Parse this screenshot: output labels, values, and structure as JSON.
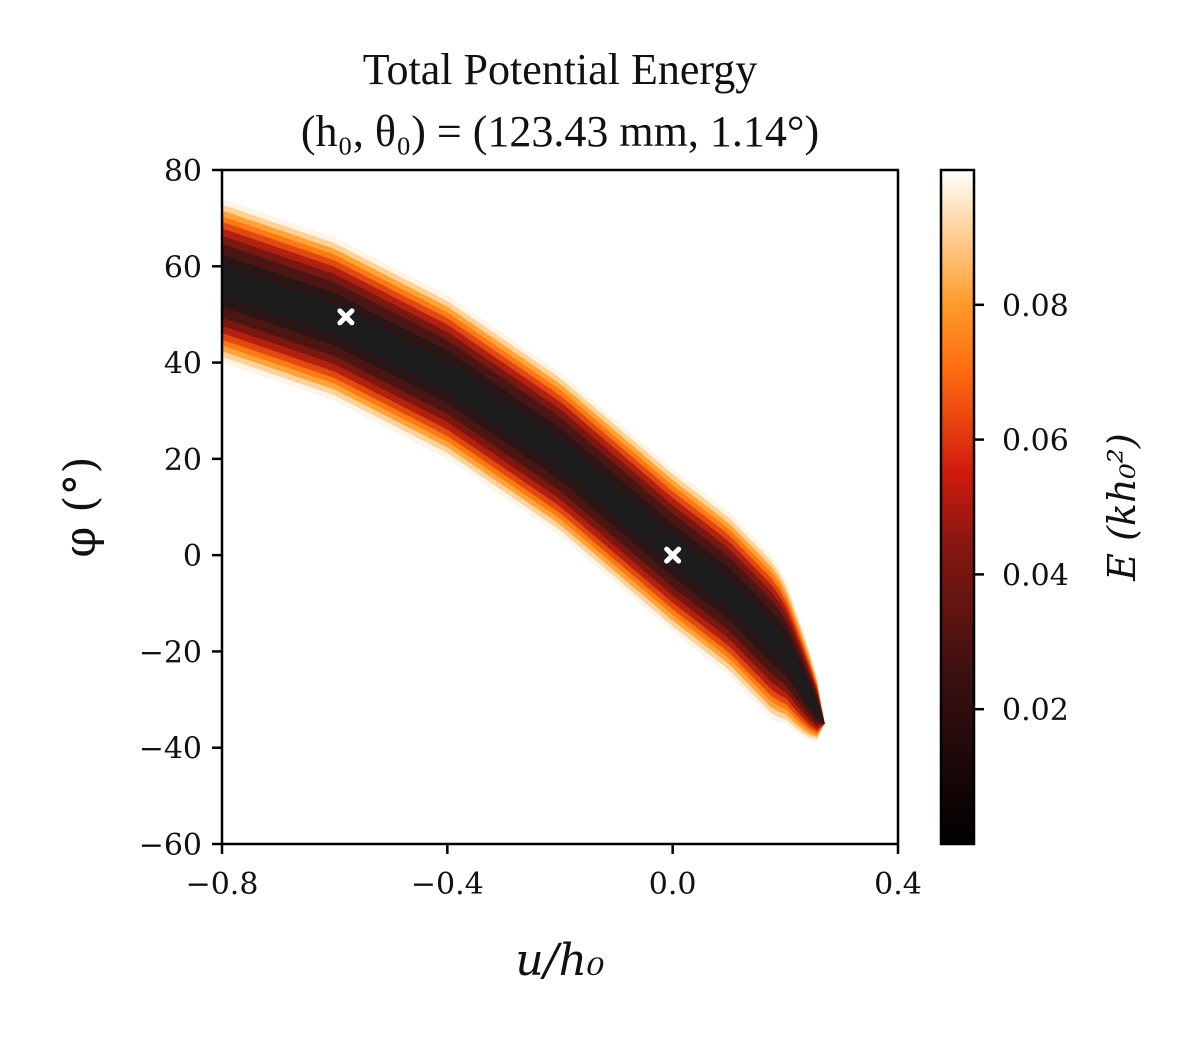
{
  "chart_data": {
    "type": "heatmap",
    "title": "Total Potential Energy",
    "subtitle": "(h₀, θ₀) = (123.43 mm, 1.14°)",
    "xlabel": "u/h₀",
    "ylabel": "φ (°)",
    "xlim": [
      -0.8,
      0.4
    ],
    "ylim": [
      -60,
      80
    ],
    "xticks": [
      "−0.8",
      "−0.4",
      "0.0",
      "0.4"
    ],
    "yticks": [
      "80",
      "60",
      "40",
      "20",
      "0",
      "−20",
      "−40",
      "−60"
    ],
    "colorbar": {
      "label": "E (kh₀²)",
      "range": [
        0.0,
        0.1
      ],
      "ticks": [
        "0.08",
        "0.06",
        "0.04",
        "0.02"
      ],
      "colormap": "gist_heat",
      "masked_above": 0.1
    },
    "valley_centerline": {
      "u": [
        -0.8,
        -0.6,
        -0.4,
        -0.2,
        0.0,
        0.1,
        0.2,
        0.27
      ],
      "phi": [
        57,
        49,
        37,
        21,
        1,
        -8,
        -20,
        -35
      ]
    },
    "minima": [
      {
        "u": -0.58,
        "phi": 49.5
      },
      {
        "u": 0.0,
        "phi": 0.0
      }
    ],
    "marker": "x",
    "marker_color": "#ffffff"
  }
}
